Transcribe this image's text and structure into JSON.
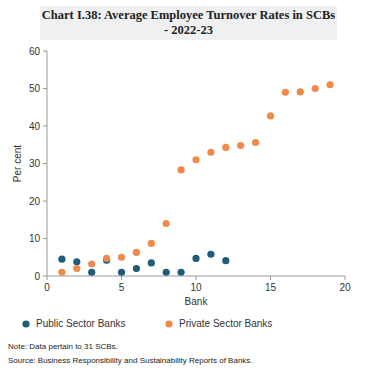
{
  "chart_data": {
    "type": "scatter",
    "title": "Chart I.38: Average Employee Turnover Rates in SCBs - 2022-23",
    "x_label": "Bank",
    "y_label": "Per cent",
    "note": "Note: Data pertain to 31 SCBs.",
    "source": "Source: Business Responsibility and Sustainability Reports of Banks.",
    "xlim": [
      0,
      20
    ],
    "xticks": [
      0,
      5,
      10,
      15,
      20
    ],
    "ylim": [
      0,
      60
    ],
    "yticks": [
      0,
      10,
      20,
      30,
      40,
      50,
      60
    ],
    "grid": false,
    "legend": "bottom",
    "marker": "circle",
    "series": [
      {
        "name": "Public Sector Banks",
        "color": "#1f5c78",
        "x": [
          1,
          2,
          3,
          4,
          5,
          6,
          7,
          8,
          9,
          10,
          11,
          12
        ],
        "values": [
          4.5,
          3.8,
          1.0,
          4.2,
          1.0,
          2.0,
          3.5,
          1.0,
          1.0,
          4.7,
          5.8,
          4.1
        ]
      },
      {
        "name": "Private Sector Banks",
        "color": "#f08a4b",
        "x": [
          1,
          2,
          3,
          4,
          5,
          6,
          7,
          8,
          9,
          10,
          11,
          12,
          13,
          14,
          15,
          16,
          17,
          18,
          19
        ],
        "values": [
          1.0,
          2.0,
          3.2,
          4.7,
          5.0,
          6.3,
          8.7,
          14.0,
          28.3,
          31.0,
          33.0,
          34.3,
          34.8,
          35.6,
          42.7,
          49.0,
          49.1,
          50.0,
          51.0
        ]
      }
    ]
  }
}
